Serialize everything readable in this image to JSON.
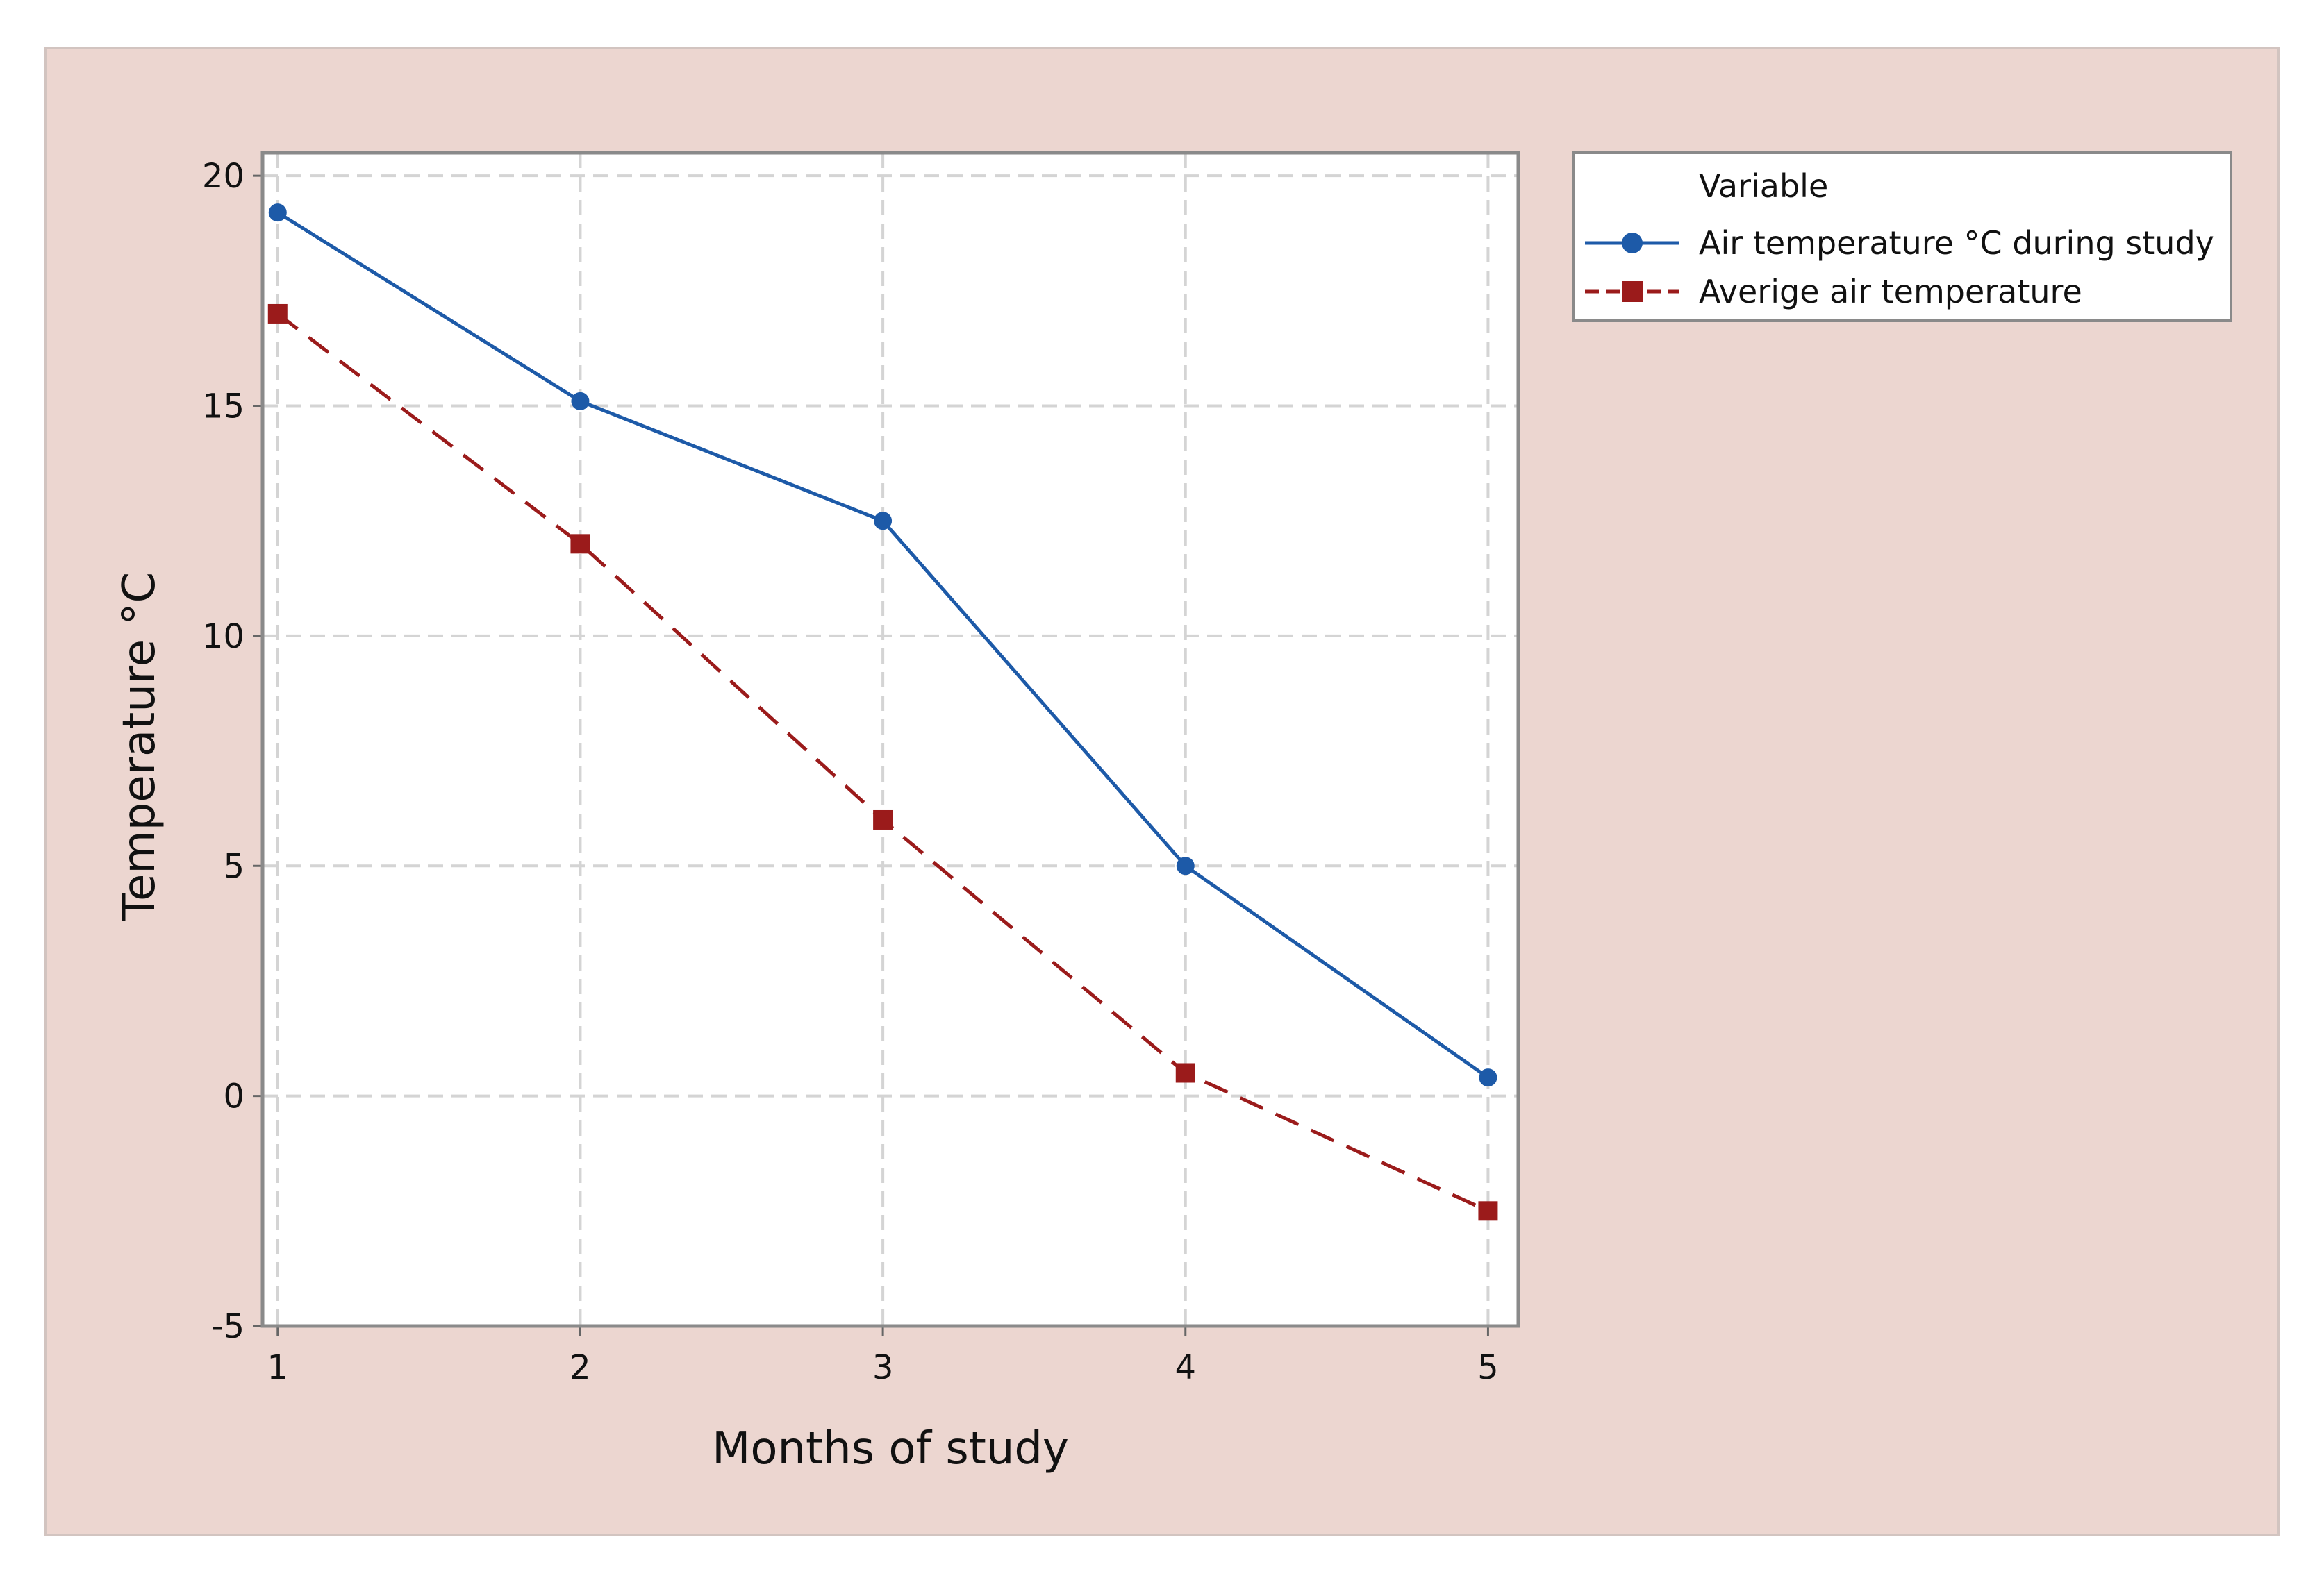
{
  "chart_data": {
    "type": "line",
    "xlabel": "Months of study",
    "ylabel": "Temperature °C",
    "x": [
      1,
      2,
      3,
      4,
      5
    ],
    "x_ticks": [
      "1",
      "2",
      "3",
      "4",
      "5"
    ],
    "y_ticks": [
      "-5",
      "0",
      "5",
      "10",
      "15",
      "20"
    ],
    "xlim": [
      0.95,
      5.1
    ],
    "ylim": [
      -5,
      20.5
    ],
    "grid": true,
    "legend_title": "Variable",
    "legend_position": "right",
    "series": [
      {
        "name": "Air temperature °C during study",
        "values": [
          19.2,
          15.1,
          12.5,
          5.0,
          0.4
        ],
        "color": "#1d5aa8",
        "marker": "circle",
        "linestyle": "solid"
      },
      {
        "name": "Averige air temperature",
        "values": [
          17.0,
          12.0,
          6.0,
          0.5,
          -2.5
        ],
        "color": "#9b1b1b",
        "marker": "square",
        "linestyle": "dashed"
      }
    ]
  }
}
